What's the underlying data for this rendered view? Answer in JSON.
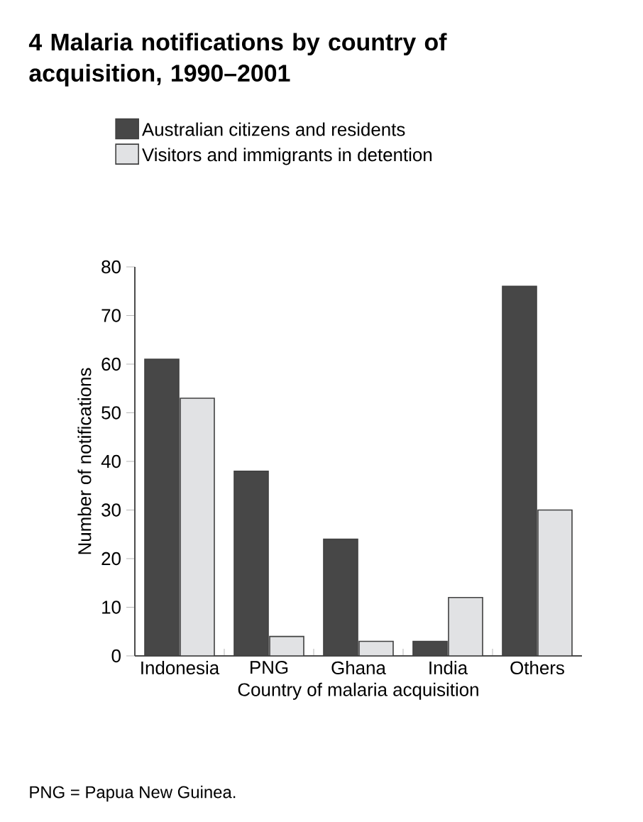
{
  "chart_data": {
    "type": "bar",
    "title": "4  Malaria notifications by country of acquisition, 1990–2001",
    "categories": [
      "Indonesia",
      "PNG",
      "Ghana",
      "India",
      "Others"
    ],
    "series": [
      {
        "name": "Australian citizens and residents",
        "color": "#474747",
        "values": [
          61,
          38,
          24,
          3,
          76
        ]
      },
      {
        "name": "Visitors and immigrants in detention",
        "color": "#e1e2e4",
        "values": [
          53,
          4,
          3,
          12,
          30
        ]
      }
    ],
    "xlabel": "Country of malaria acquisition",
    "ylabel": "Number of notifications",
    "ylim": [
      0,
      80
    ],
    "yticks": [
      0,
      10,
      20,
      30,
      40,
      50,
      60,
      70,
      80
    ],
    "legend": "top left",
    "grid": false,
    "annotations": [
      "PNG = Papua New Guinea."
    ]
  }
}
